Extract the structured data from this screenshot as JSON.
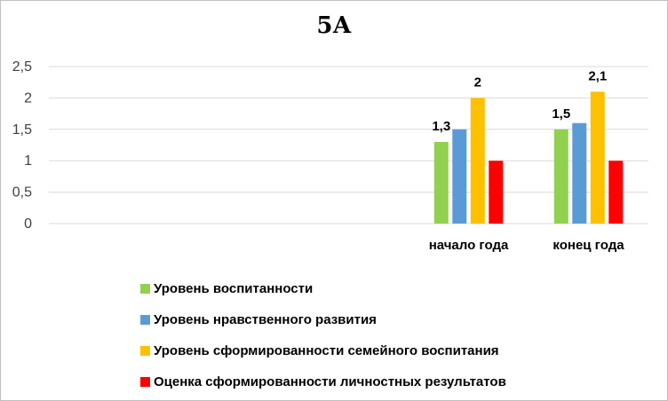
{
  "chart_data": {
    "type": "bar",
    "title": "5А",
    "categories": [
      "",
      "",
      "",
      "начало года",
      "конец года"
    ],
    "ylim": [
      0,
      2.5
    ],
    "yticks": [
      "0",
      "0,5",
      "1",
      "1,5",
      "2",
      "2,5"
    ],
    "grid": true,
    "legend_position": "bottom-left",
    "series": [
      {
        "name": "Уровень воспитанности",
        "color": "#92d050",
        "values": [
          null,
          null,
          null,
          1.3,
          1.5
        ],
        "labels": [
          null,
          null,
          null,
          "1,3",
          "1,5"
        ]
      },
      {
        "name": "Уровень нравственного развития",
        "color": "#5b9bd5",
        "values": [
          null,
          null,
          null,
          1.5,
          1.6
        ],
        "labels": [
          null,
          null,
          null,
          null,
          null
        ]
      },
      {
        "name": "Уровень сформированности семейного воспитания",
        "color": "#ffc000",
        "values": [
          null,
          null,
          null,
          2.0,
          2.1
        ],
        "labels": [
          null,
          null,
          null,
          "2",
          "2,1"
        ]
      },
      {
        "name": "Оценка сформированности личностных результатов",
        "color": "#ff0000",
        "values": [
          null,
          null,
          null,
          1.0,
          1.0
        ],
        "labels": [
          null,
          null,
          null,
          null,
          null
        ]
      }
    ]
  }
}
